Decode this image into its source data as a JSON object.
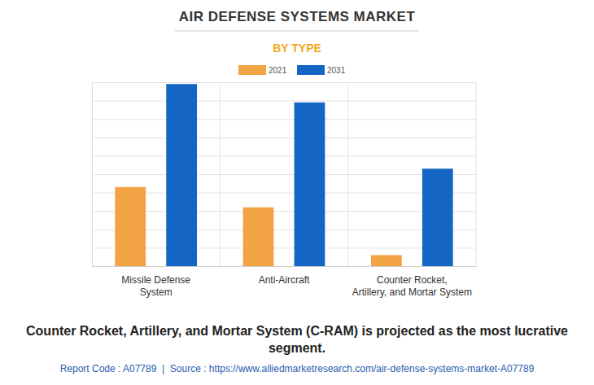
{
  "chart_data": {
    "type": "bar",
    "title": "AIR DEFENSE SYSTEMS MARKET",
    "subtitle": "BY TYPE",
    "categories": [
      "Missile Defense System",
      "Anti-Aircraft",
      "Counter Rocket, Artillery, and Mortar System"
    ],
    "series": [
      {
        "name": "2021",
        "color": "#f2a444",
        "values": [
          4.3,
          3.2,
          0.6
        ]
      },
      {
        "name": "2031",
        "color": "#1565c4",
        "values": [
          9.9,
          8.9,
          5.3
        ]
      }
    ],
    "ylim": [
      0,
      10
    ],
    "yticks": [
      0,
      1,
      2,
      3,
      4,
      5,
      6,
      7,
      8,
      9,
      10
    ],
    "grid": true,
    "legend": "top",
    "tick_labels": "x",
    "annotations": [
      "Counter Rocket, Artillery, and Mortar System (C-RAM) is projected as the most lucrative segment.",
      "Report Code : A07789  |  Source : https://www.alliedmarketresearch.com/air-defense-systems-market-A07789"
    ]
  }
}
